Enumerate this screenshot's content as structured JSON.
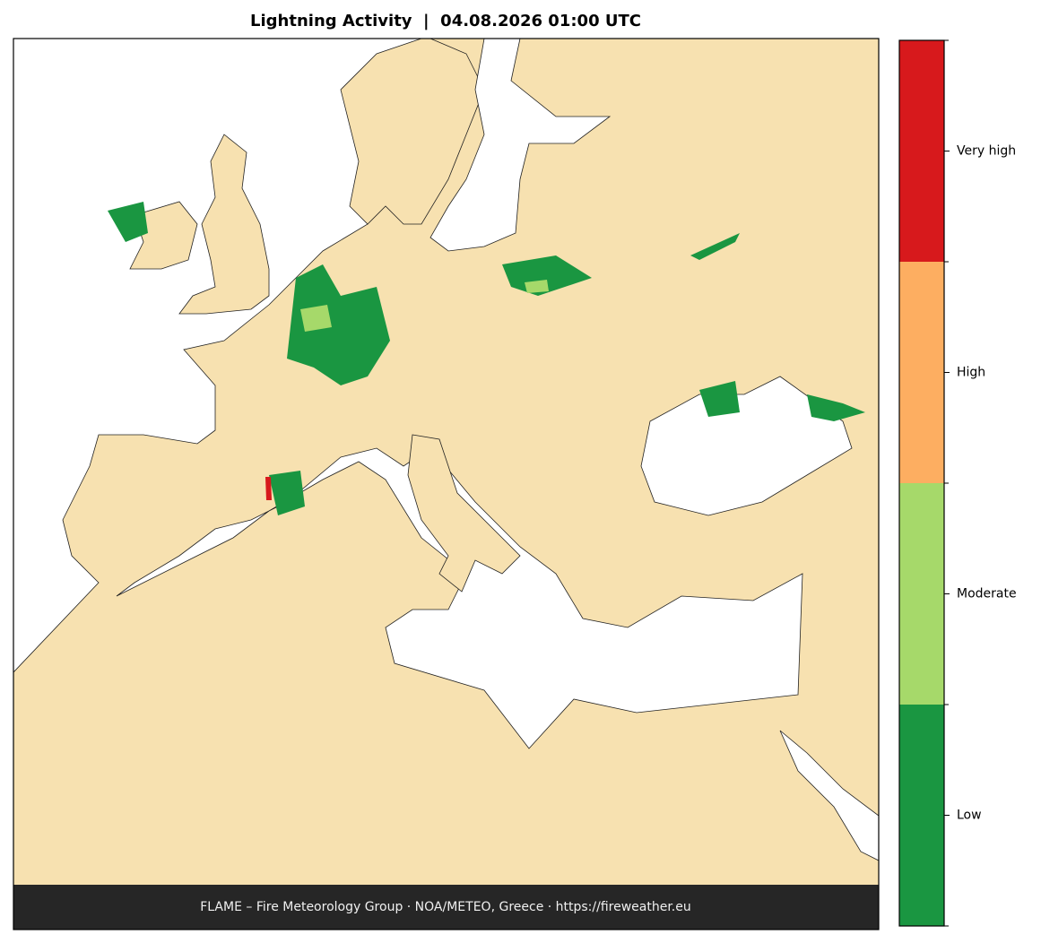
{
  "title": "Lightning Activity  |  04.08.2026 01:00 UTC",
  "legend": {
    "levels": [
      {
        "label": "Low",
        "color": "#1a9641"
      },
      {
        "label": "Moderate",
        "color": "#a6d96a"
      },
      {
        "label": "High",
        "color": "#fdae61"
      },
      {
        "label": "Very high",
        "color": "#d7191c"
      }
    ]
  },
  "footer": "FLAME – Fire Meteorology Group · NOA/METEO, Greece · https://fireweather.eu"
}
